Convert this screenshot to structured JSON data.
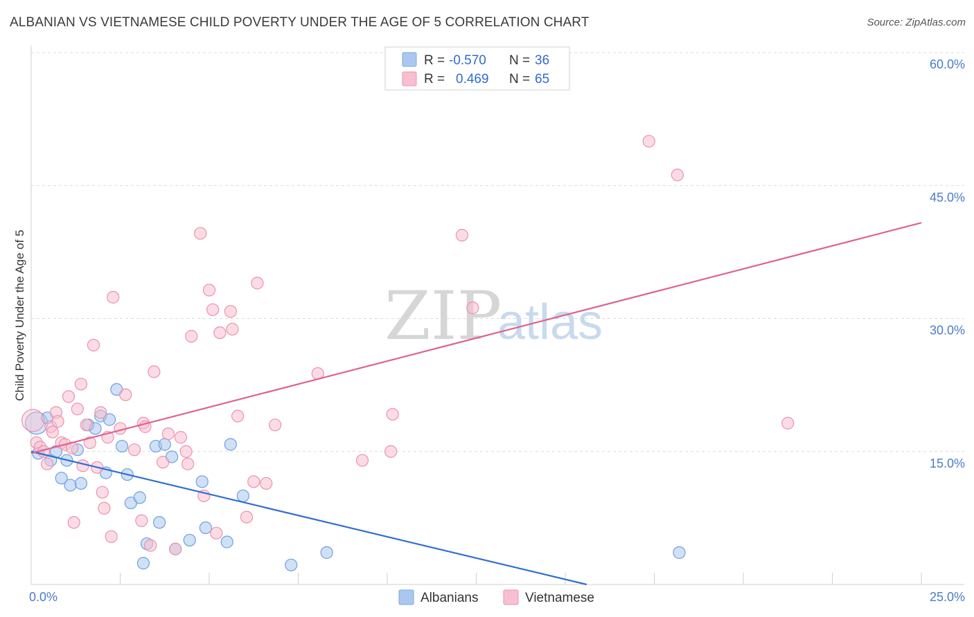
{
  "title": "ALBANIAN VS VIETNAMESE CHILD POVERTY UNDER THE AGE OF 5 CORRELATION CHART",
  "source": "Source: ZipAtlas.com",
  "watermark": {
    "zip": "ZIP",
    "atlas": "atlas"
  },
  "legend": {
    "rows": [
      {
        "r_label": "R =",
        "r_value": "-0.570",
        "n_label": "N =",
        "n_value": "36",
        "color": "#aac8ef",
        "stroke": "#7aa7e0"
      },
      {
        "r_label": "R =",
        "r_value": "0.469",
        "n_label": "N =",
        "n_value": "65",
        "color": "#f7c0d0",
        "stroke": "#ec91ad"
      }
    ]
  },
  "chart_data": {
    "type": "scatter",
    "title": "ALBANIAN VS VIETNAMESE CHILD POVERTY UNDER THE AGE OF 5 CORRELATION CHART",
    "xlabel": "",
    "ylabel": "Child Poverty Under the Age of 5",
    "xlim": [
      0,
      25
    ],
    "ylim": [
      0,
      60
    ],
    "x_tick_labels": [
      "0.0%",
      "25.0%"
    ],
    "y_ticks": [
      15,
      30,
      45,
      60
    ],
    "y_tick_labels": [
      "15.0%",
      "30.0%",
      "45.0%",
      "60.0%"
    ],
    "grid": true,
    "legend_position": "top-center",
    "series": [
      {
        "name": "Albanians",
        "color": "#aac8ef",
        "stroke": "#6f9fde",
        "trend_color": "#2f6fd1",
        "trend": {
          "x0": 0,
          "y0": 15.0,
          "x1": 15.6,
          "y1": 0
        },
        "points": [
          [
            0.15,
            18.2
          ],
          [
            0.2,
            14.8
          ],
          [
            0.45,
            18.8
          ],
          [
            0.55,
            14.0
          ],
          [
            0.7,
            15.0
          ],
          [
            0.85,
            12.0
          ],
          [
            1.0,
            14.0
          ],
          [
            1.1,
            11.2
          ],
          [
            1.3,
            15.2
          ],
          [
            1.4,
            11.4
          ],
          [
            1.6,
            18.0
          ],
          [
            1.8,
            17.6
          ],
          [
            1.95,
            19.0
          ],
          [
            2.1,
            12.6
          ],
          [
            2.2,
            18.6
          ],
          [
            2.4,
            22.0
          ],
          [
            2.55,
            15.6
          ],
          [
            2.7,
            12.4
          ],
          [
            2.8,
            9.2
          ],
          [
            3.05,
            9.8
          ],
          [
            3.15,
            2.4
          ],
          [
            3.25,
            4.6
          ],
          [
            3.5,
            15.6
          ],
          [
            3.6,
            7.0
          ],
          [
            3.75,
            15.8
          ],
          [
            3.95,
            14.4
          ],
          [
            4.05,
            4.0
          ],
          [
            4.45,
            5.0
          ],
          [
            4.8,
            11.6
          ],
          [
            4.9,
            6.4
          ],
          [
            5.5,
            4.8
          ],
          [
            5.6,
            15.8
          ],
          [
            5.95,
            10.0
          ],
          [
            7.3,
            2.2
          ],
          [
            8.3,
            3.6
          ],
          [
            18.2,
            3.6
          ]
        ]
      },
      {
        "name": "Vietnamese",
        "color": "#f7c0d0",
        "stroke": "#ec91ad",
        "trend_color": "#e0628e",
        "trend": {
          "x0": 0,
          "y0": 14.8,
          "x1": 25,
          "y1": 40.8
        },
        "points": [
          [
            0.05,
            18.5
          ],
          [
            0.15,
            16.0
          ],
          [
            0.25,
            15.5
          ],
          [
            0.35,
            15.0
          ],
          [
            0.45,
            13.6
          ],
          [
            0.55,
            17.8
          ],
          [
            0.6,
            17.2
          ],
          [
            0.7,
            19.4
          ],
          [
            0.75,
            18.4
          ],
          [
            0.85,
            16.0
          ],
          [
            0.95,
            15.8
          ],
          [
            1.05,
            21.2
          ],
          [
            1.15,
            15.4
          ],
          [
            1.2,
            7.0
          ],
          [
            1.3,
            19.8
          ],
          [
            1.4,
            22.6
          ],
          [
            1.45,
            13.4
          ],
          [
            1.55,
            18.0
          ],
          [
            1.65,
            16.0
          ],
          [
            1.75,
            27.0
          ],
          [
            1.85,
            13.2
          ],
          [
            1.95,
            19.4
          ],
          [
            2.0,
            10.4
          ],
          [
            2.05,
            8.6
          ],
          [
            2.15,
            16.6
          ],
          [
            2.25,
            5.4
          ],
          [
            2.3,
            32.4
          ],
          [
            2.5,
            17.6
          ],
          [
            2.65,
            21.4
          ],
          [
            2.9,
            15.2
          ],
          [
            3.1,
            7.2
          ],
          [
            3.15,
            18.2
          ],
          [
            3.2,
            17.8
          ],
          [
            3.35,
            4.4
          ],
          [
            3.45,
            24.0
          ],
          [
            3.7,
            13.8
          ],
          [
            3.85,
            17.0
          ],
          [
            4.05,
            4.0
          ],
          [
            4.2,
            16.6
          ],
          [
            4.35,
            15.0
          ],
          [
            4.4,
            13.6
          ],
          [
            4.5,
            28.0
          ],
          [
            4.75,
            39.6
          ],
          [
            4.85,
            10.0
          ],
          [
            5.0,
            33.2
          ],
          [
            5.1,
            31.0
          ],
          [
            5.2,
            5.8
          ],
          [
            5.3,
            28.4
          ],
          [
            5.6,
            30.8
          ],
          [
            5.65,
            28.8
          ],
          [
            5.8,
            19.0
          ],
          [
            6.05,
            7.6
          ],
          [
            6.25,
            11.6
          ],
          [
            6.35,
            34.0
          ],
          [
            6.6,
            11.4
          ],
          [
            6.85,
            18.0
          ],
          [
            8.05,
            23.8
          ],
          [
            9.3,
            14.0
          ],
          [
            10.1,
            15.0
          ],
          [
            10.15,
            19.2
          ],
          [
            12.1,
            39.4
          ],
          [
            12.4,
            31.2
          ],
          [
            17.35,
            50.0
          ],
          [
            18.15,
            46.2
          ],
          [
            21.25,
            18.2
          ]
        ]
      }
    ]
  }
}
